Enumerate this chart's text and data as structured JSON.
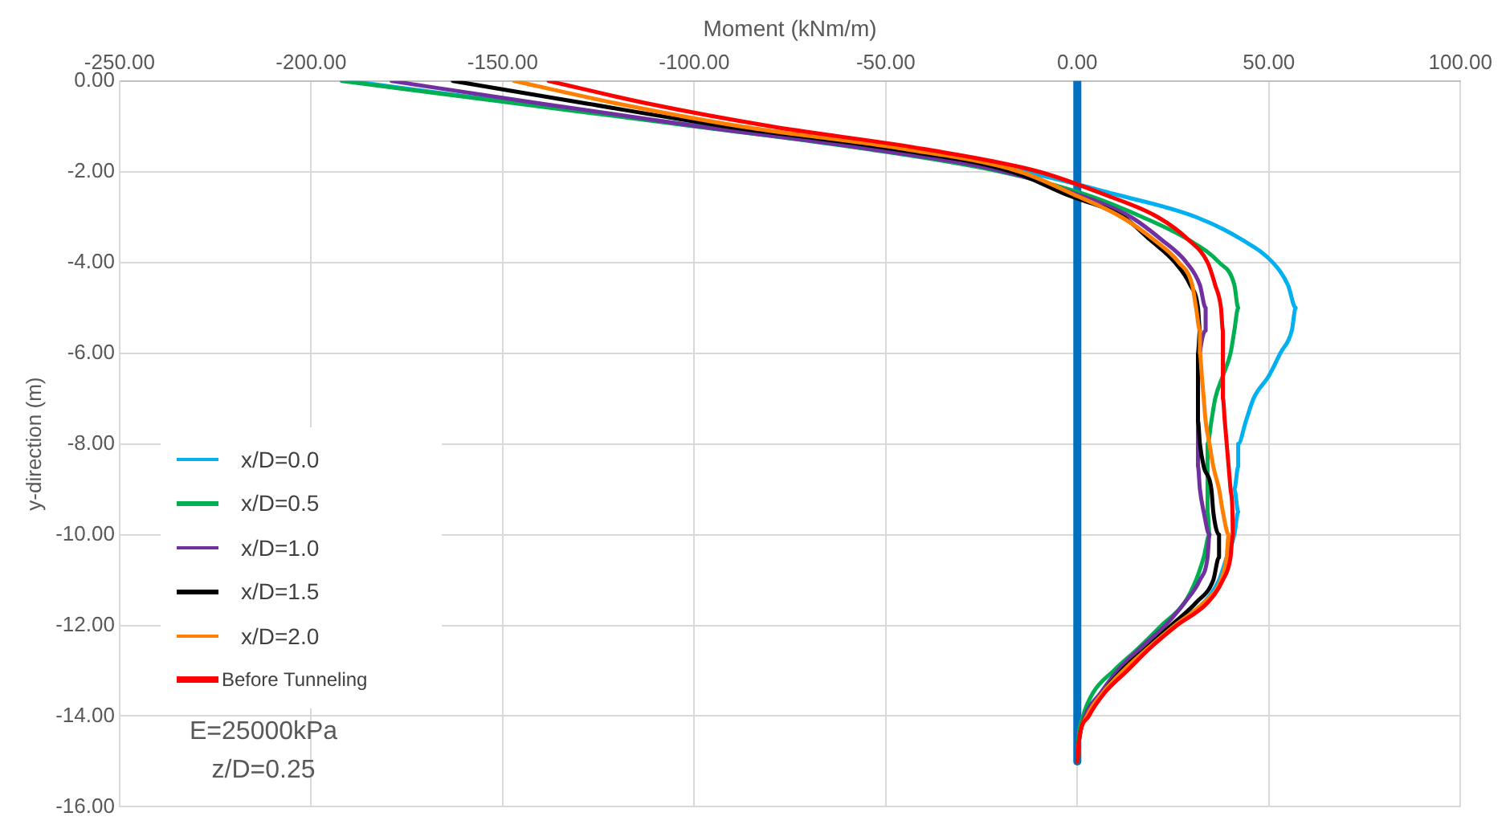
{
  "chart_data": {
    "type": "line",
    "xlabel": "Moment (kNm/m)",
    "ylabel": "y-direction (m)",
    "xlim": [
      -250,
      100
    ],
    "ylim": [
      -16,
      0
    ],
    "xticks": [
      {
        "value": -250,
        "label": "-250.00"
      },
      {
        "value": -200,
        "label": "-200.00"
      },
      {
        "value": -150,
        "label": "-150.00"
      },
      {
        "value": -100,
        "label": "-100.00"
      },
      {
        "value": -50,
        "label": "-50.00"
      },
      {
        "value": 0,
        "label": "0.00"
      },
      {
        "value": 50,
        "label": "50.00"
      },
      {
        "value": 100,
        "label": "100.00"
      }
    ],
    "yticks": [
      {
        "value": 0,
        "label": "0.00"
      },
      {
        "value": -2,
        "label": "-2.00"
      },
      {
        "value": -4,
        "label": "-4.00"
      },
      {
        "value": -6,
        "label": "-6.00"
      },
      {
        "value": -8,
        "label": "-8.00"
      },
      {
        "value": -10,
        "label": "-10.00"
      },
      {
        "value": -12,
        "label": "-12.00"
      },
      {
        "value": -14,
        "label": "-14.00"
      },
      {
        "value": -16,
        "label": "-16.00"
      }
    ],
    "grid": true,
    "legend": "bottom left",
    "marker": "none",
    "line_style": "solid",
    "annotations": [
      "E=25000kPa",
      "z/D=0.25"
    ],
    "series": [
      {
        "color": "#0070c0",
        "x": [
          0,
          0
        ],
        "values": [
          0,
          -15
        ]
      },
      {
        "name": "x/D=0.0",
        "color": "#00b0f0",
        "x": [
          -190,
          -145,
          -98,
          -53,
          -14,
          10,
          31,
          43,
          51,
          55,
          57,
          56,
          53,
          50,
          46,
          44,
          42,
          42,
          41,
          42,
          41,
          39,
          37,
          33,
          25
        ],
        "values": [
          0,
          -0.5,
          -1,
          -1.5,
          -2,
          -2.5,
          -3,
          -3.5,
          -4,
          -4.5,
          -5,
          -5.5,
          -6,
          -6.5,
          -7,
          -7.5,
          -8,
          -8.5,
          -9,
          -9.5,
          -10,
          -10.5,
          -11,
          -11.5,
          -12
        ]
      },
      {
        "name": "x/D=0.5",
        "color": "#00b050",
        "x": [
          -192,
          -146,
          -100,
          -55,
          -20,
          2,
          17,
          29,
          37,
          41,
          42,
          41,
          40,
          38,
          36,
          35,
          34,
          34,
          34,
          34,
          34.5,
          33,
          31,
          28,
          22,
          16,
          9.5,
          4,
          1.5,
          0.3,
          0
        ],
        "values": [
          0,
          -0.5,
          -1,
          -1.5,
          -2,
          -2.5,
          -3,
          -3.5,
          -4,
          -4.5,
          -5,
          -5.5,
          -6,
          -6.5,
          -7,
          -7.5,
          -8,
          -8.5,
          -9,
          -9.5,
          -10,
          -10.5,
          -11,
          -11.5,
          -12,
          -12.5,
          -13,
          -13.5,
          -14,
          -14.5,
          -15
        ]
      },
      {
        "name": "x/D=1.0",
        "color": "#7030a0",
        "x": [
          -179,
          -140,
          -99,
          -54,
          -19,
          0,
          14,
          22,
          28.5,
          32,
          33.5,
          33.5,
          32,
          31.5,
          31.5,
          31.5,
          31.5,
          31.5,
          32,
          33,
          34.5,
          34,
          32,
          28,
          23,
          16.5,
          10.5,
          6,
          2,
          0.5,
          0
        ],
        "values": [
          0,
          -0.5,
          -1,
          -1.5,
          -2,
          -2.5,
          -3,
          -3.5,
          -4,
          -4.5,
          -5,
          -5.5,
          -6,
          -6.5,
          -7,
          -7.5,
          -8,
          -8.5,
          -9,
          -9.5,
          -10,
          -10.5,
          -11,
          -11.5,
          -12,
          -12.5,
          -13,
          -13.5,
          -14,
          -14.5,
          -15
        ]
      },
      {
        "name": "x/D=1.5",
        "color": "#000000",
        "x": [
          -163,
          -128,
          -92,
          -48,
          -17,
          -3,
          12,
          19,
          25.5,
          29.5,
          31.5,
          32,
          31.5,
          31.5,
          31.5,
          31.5,
          32,
          33,
          35,
          35.5,
          37,
          37,
          35.5,
          31,
          24.5,
          18,
          11.5,
          6.5,
          2.5,
          0.5,
          0
        ],
        "values": [
          0,
          -0.5,
          -1,
          -1.5,
          -2,
          -2.5,
          -3,
          -3.5,
          -4,
          -4.5,
          -5,
          -5.5,
          -6,
          -6.5,
          -7,
          -7.5,
          -8,
          -8.5,
          -9,
          -9.5,
          -10,
          -10.5,
          -11,
          -11.5,
          -12,
          -12.5,
          -13,
          -13.5,
          -14,
          -14.5,
          -15
        ]
      },
      {
        "name": "x/D=2.0",
        "color": "#ff7f00",
        "x": [
          -147,
          -120,
          -88,
          -45,
          -15,
          -1,
          11.5,
          20,
          26.5,
          30,
          31,
          32,
          32,
          32.5,
          33,
          33.5,
          34.5,
          35.5,
          37,
          38,
          39.5,
          39,
          37.5,
          33,
          25.5,
          18.5,
          12,
          6.5,
          2.5,
          0.5,
          0
        ],
        "values": [
          0,
          -0.5,
          -1,
          -1.5,
          -2,
          -2.5,
          -3,
          -3.5,
          -4,
          -4.5,
          -5,
          -5.5,
          -6,
          -6.5,
          -7,
          -7.5,
          -8,
          -8.5,
          -9,
          -9.5,
          -10,
          -10.5,
          -11,
          -11.5,
          -12,
          -12.5,
          -13,
          -13.5,
          -14,
          -14.5,
          -15
        ]
      },
      {
        "name": "Before Tunneling",
        "color": "#ff0000",
        "x": [
          -138,
          -112,
          -80,
          -40,
          -10,
          7,
          21,
          29,
          34,
          36,
          37.5,
          38,
          38,
          38,
          38,
          38.5,
          39,
          39.5,
          40,
          40.5,
          40.6,
          40,
          38,
          34,
          26,
          19,
          13,
          7,
          3,
          0.5,
          0
        ],
        "values": [
          0,
          -0.5,
          -1,
          -1.5,
          -2,
          -2.5,
          -3,
          -3.5,
          -4,
          -4.5,
          -5,
          -5.5,
          -6,
          -6.5,
          -7,
          -7.5,
          -8,
          -8.5,
          -9,
          -9.5,
          -10,
          -10.5,
          -11,
          -11.5,
          -12,
          -12.5,
          -13,
          -13.5,
          -14,
          -14.5,
          -15
        ]
      }
    ]
  }
}
